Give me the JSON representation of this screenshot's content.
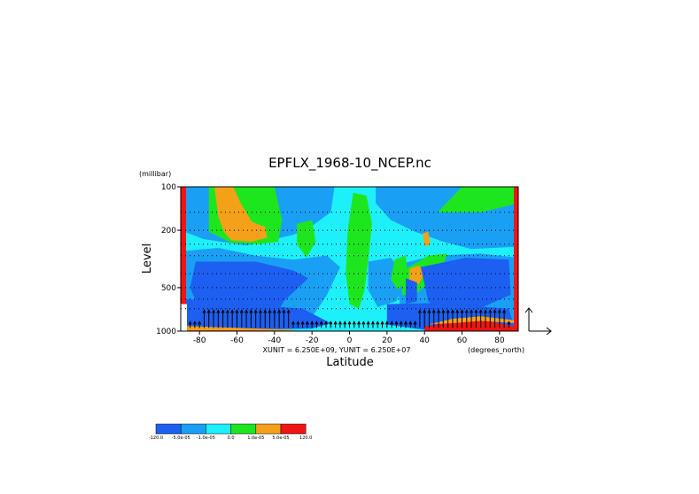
{
  "chart_data": {
    "type": "heatmap",
    "title": "EPFLX_1968-10_NCEP.nc",
    "xlabel": "Latitude",
    "ylabel": "Level",
    "y_unit": "(millibar)",
    "x_unit": "(degrees_north)",
    "vector_units": "XUNIT = 6.250E+09, YUNIT = 6.250E+07",
    "xlim": [
      -90,
      90
    ],
    "ylim": [
      1000,
      100
    ],
    "y_scale": "log",
    "x_ticks": [
      -80,
      -60,
      -40,
      -20,
      0,
      20,
      40,
      60,
      80
    ],
    "y_ticks": [
      100,
      200,
      500,
      1000
    ],
    "colorbar": {
      "colors": [
        "#1d5ff0",
        "#19a0f5",
        "#1ef0fa",
        "#1ee61e",
        "#f5a019",
        "#f01414"
      ],
      "labels": [
        "-120.0",
        "-5.0e-05",
        "-1.0e-05",
        "0.0",
        "1.0e-05",
        "5.0e-05",
        "120.0"
      ]
    },
    "regions": [
      {
        "category": "strong_negative",
        "lat_range": [
          -75,
          -35
        ],
        "level_range": [
          380,
          900
        ]
      },
      {
        "category": "strong_negative",
        "lat_range": [
          40,
          85
        ],
        "level_range": [
          350,
          800
        ]
      },
      {
        "category": "positive",
        "lat_range": [
          -2,
          10
        ],
        "level_range": [
          110,
          700
        ]
      },
      {
        "category": "moderate_positive",
        "lat_range": [
          -72,
          -48
        ],
        "level_range": [
          100,
          230
        ]
      },
      {
        "category": "moderate_positive",
        "lat_range": [
          -67,
          -45
        ],
        "level_range": [
          190,
          240
        ]
      },
      {
        "category": "moderate_positive",
        "lat_range": [
          32,
          40
        ],
        "level_range": [
          370,
          470
        ]
      },
      {
        "category": "strong_positive",
        "lat_range": [
          40,
          85
        ],
        "level_range": [
          870,
          1000
        ]
      }
    ]
  }
}
